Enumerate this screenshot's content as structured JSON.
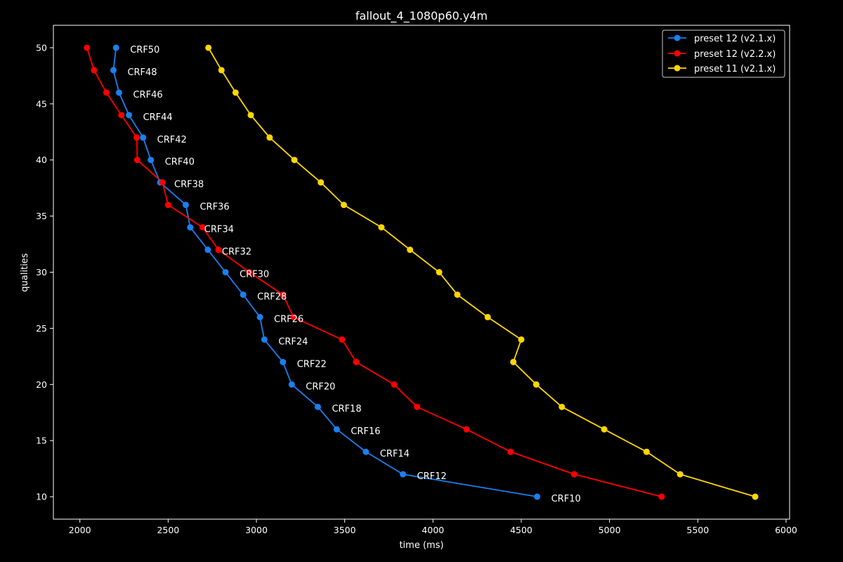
{
  "chart_data": {
    "type": "line",
    "title": "fallout_4_1080p60.y4m",
    "xlabel": "time (ms)",
    "ylabel": "qualities",
    "xlim": [
      1850,
      6020
    ],
    "ylim": [
      8,
      52
    ],
    "xticks": [
      2000,
      2500,
      3000,
      3500,
      4000,
      4500,
      5000,
      5500,
      6000
    ],
    "yticks": [
      10,
      15,
      20,
      25,
      30,
      35,
      40,
      45,
      50
    ],
    "grid": false,
    "legend_position": "top-right",
    "series": [
      {
        "name": "preset 12 (v2.1.x)",
        "color": "#1a80f0",
        "points": [
          {
            "x": 2205,
            "y": 50
          },
          {
            "x": 2190,
            "y": 48
          },
          {
            "x": 2222,
            "y": 46
          },
          {
            "x": 2278,
            "y": 44
          },
          {
            "x": 2358,
            "y": 42
          },
          {
            "x": 2402,
            "y": 40
          },
          {
            "x": 2455,
            "y": 38
          },
          {
            "x": 2600,
            "y": 36
          },
          {
            "x": 2625,
            "y": 34
          },
          {
            "x": 2725,
            "y": 32
          },
          {
            "x": 2825,
            "y": 30
          },
          {
            "x": 2925,
            "y": 28
          },
          {
            "x": 3020,
            "y": 26
          },
          {
            "x": 3045,
            "y": 24
          },
          {
            "x": 3150,
            "y": 22
          },
          {
            "x": 3200,
            "y": 20
          },
          {
            "x": 3348,
            "y": 18
          },
          {
            "x": 3455,
            "y": 16
          },
          {
            "x": 3620,
            "y": 14
          },
          {
            "x": 3830,
            "y": 12
          },
          {
            "x": 4590,
            "y": 10
          }
        ]
      },
      {
        "name": "preset 12 (v2.2.x)",
        "color": "#ff0000",
        "points": [
          {
            "x": 2040,
            "y": 50
          },
          {
            "x": 2080,
            "y": 48
          },
          {
            "x": 2150,
            "y": 46
          },
          {
            "x": 2235,
            "y": 44
          },
          {
            "x": 2322,
            "y": 42
          },
          {
            "x": 2325,
            "y": 40
          },
          {
            "x": 2468,
            "y": 38
          },
          {
            "x": 2500,
            "y": 36
          },
          {
            "x": 2695,
            "y": 34
          },
          {
            "x": 2785,
            "y": 32
          },
          {
            "x": 2960,
            "y": 30
          },
          {
            "x": 3150,
            "y": 28
          },
          {
            "x": 3210,
            "y": 26
          },
          {
            "x": 3485,
            "y": 24
          },
          {
            "x": 3565,
            "y": 22
          },
          {
            "x": 3780,
            "y": 20
          },
          {
            "x": 3910,
            "y": 18
          },
          {
            "x": 4190,
            "y": 16
          },
          {
            "x": 4440,
            "y": 14
          },
          {
            "x": 4800,
            "y": 12
          },
          {
            "x": 5295,
            "y": 10
          }
        ]
      },
      {
        "name": "preset 11 (v2.1.x)",
        "color": "#ffd700",
        "points": [
          {
            "x": 2728,
            "y": 50
          },
          {
            "x": 2802,
            "y": 48
          },
          {
            "x": 2882,
            "y": 46
          },
          {
            "x": 2968,
            "y": 44
          },
          {
            "x": 3075,
            "y": 42
          },
          {
            "x": 3215,
            "y": 40
          },
          {
            "x": 3365,
            "y": 38
          },
          {
            "x": 3495,
            "y": 36
          },
          {
            "x": 3708,
            "y": 34
          },
          {
            "x": 3870,
            "y": 32
          },
          {
            "x": 4035,
            "y": 30
          },
          {
            "x": 4138,
            "y": 28
          },
          {
            "x": 4310,
            "y": 26
          },
          {
            "x": 4500,
            "y": 24
          },
          {
            "x": 4455,
            "y": 22
          },
          {
            "x": 4585,
            "y": 20
          },
          {
            "x": 4730,
            "y": 18
          },
          {
            "x": 4970,
            "y": 16
          },
          {
            "x": 5210,
            "y": 14
          },
          {
            "x": 5400,
            "y": 12
          },
          {
            "x": 5825,
            "y": 10
          }
        ]
      }
    ],
    "annotations": [
      {
        "text": "CRF50",
        "x": 2205,
        "y": 50
      },
      {
        "text": "CRF48",
        "x": 2190,
        "y": 48
      },
      {
        "text": "CRF46",
        "x": 2222,
        "y": 46
      },
      {
        "text": "CRF44",
        "x": 2278,
        "y": 44
      },
      {
        "text": "CRF42",
        "x": 2358,
        "y": 42
      },
      {
        "text": "CRF40",
        "x": 2402,
        "y": 40
      },
      {
        "text": "CRF38",
        "x": 2455,
        "y": 38
      },
      {
        "text": "CRF36",
        "x": 2600,
        "y": 36
      },
      {
        "text": "CRF34",
        "x": 2625,
        "y": 34
      },
      {
        "text": "CRF32",
        "x": 2725,
        "y": 32
      },
      {
        "text": "CRF30",
        "x": 2825,
        "y": 30
      },
      {
        "text": "CRF28",
        "x": 2925,
        "y": 28
      },
      {
        "text": "CRF26",
        "x": 3020,
        "y": 26
      },
      {
        "text": "CRF24",
        "x": 3045,
        "y": 24
      },
      {
        "text": "CRF22",
        "x": 3150,
        "y": 22
      },
      {
        "text": "CRF20",
        "x": 3200,
        "y": 20
      },
      {
        "text": "CRF18",
        "x": 3348,
        "y": 18
      },
      {
        "text": "CRF16",
        "x": 3455,
        "y": 16
      },
      {
        "text": "CRF14",
        "x": 3620,
        "y": 14
      },
      {
        "text": "CRF12",
        "x": 3830,
        "y": 12
      },
      {
        "text": "CRF10",
        "x": 4590,
        "y": 10
      }
    ]
  }
}
